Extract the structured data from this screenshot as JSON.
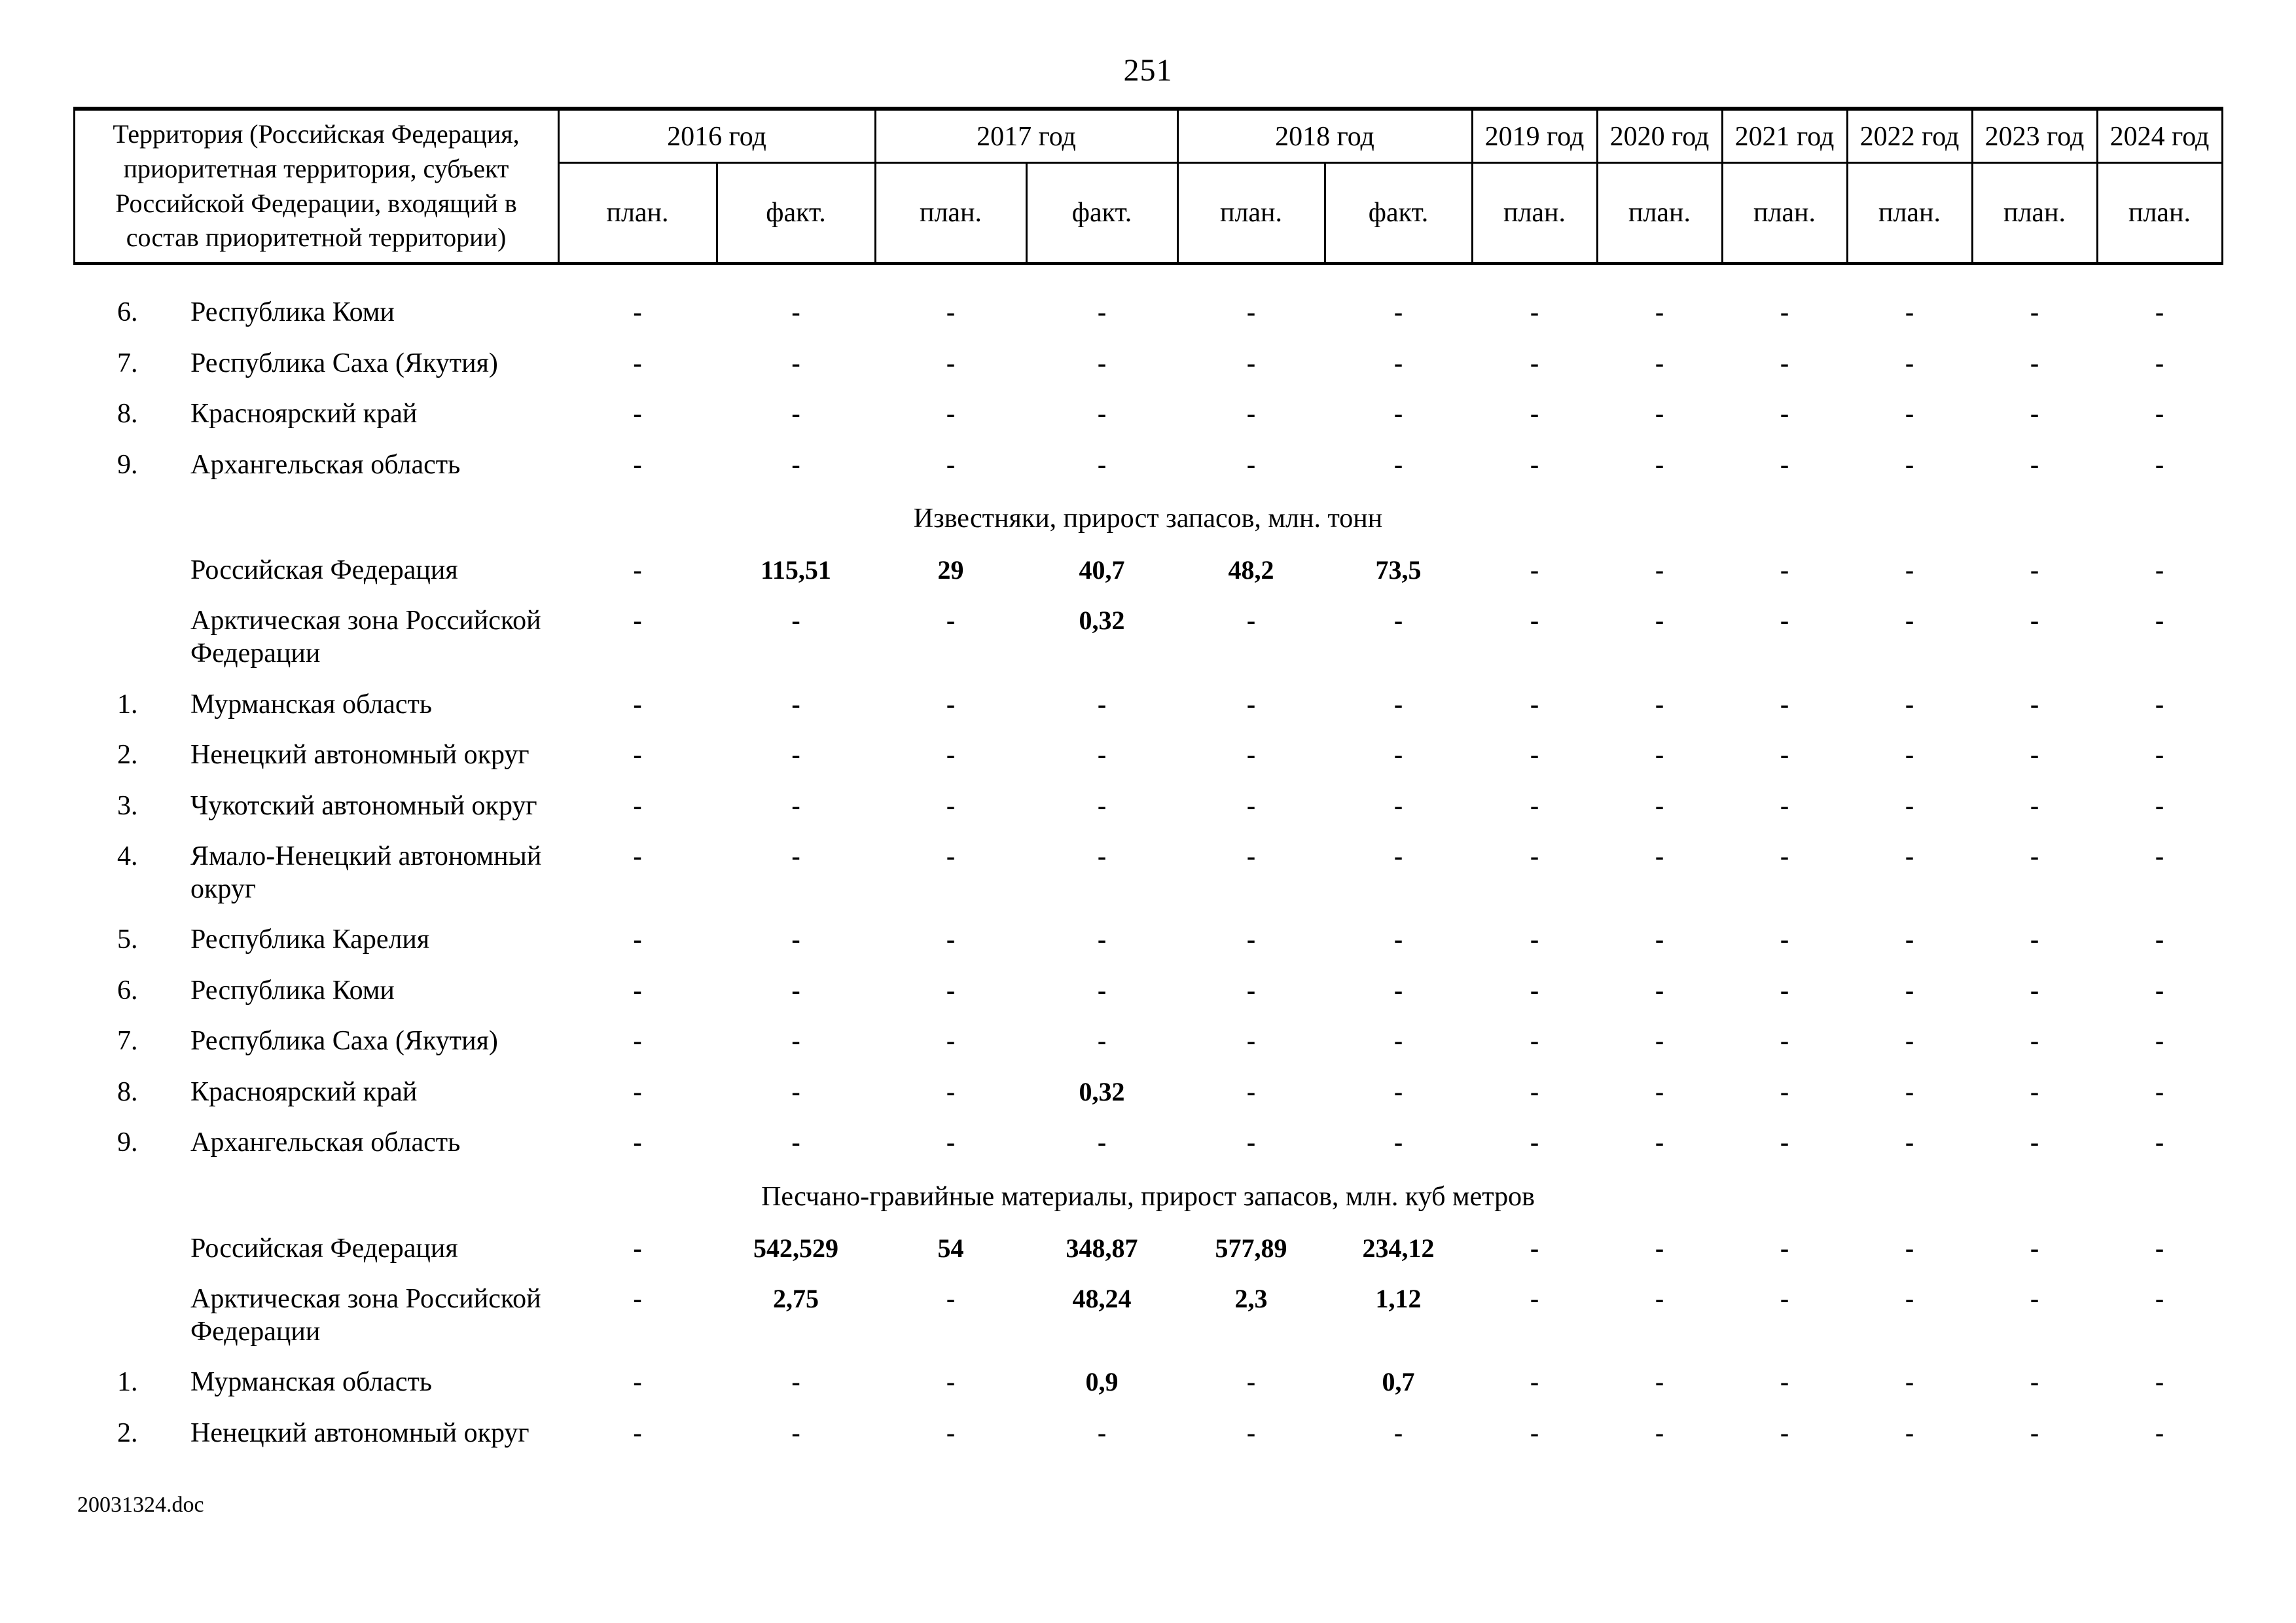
{
  "page": {
    "number": "251",
    "footer": "20031324.doc"
  },
  "table": {
    "header": {
      "territory": "Территория (Российская Федерация, приоритетная территория, субъект Российской Федерации, входящий в состав приоритетной территории)",
      "plan": "план.",
      "fact": "факт.",
      "years": [
        {
          "label": "2016 год",
          "cols": 2
        },
        {
          "label": "2017 год",
          "cols": 2
        },
        {
          "label": "2018 год",
          "cols": 2
        },
        {
          "label": "2019 год",
          "cols": 1
        },
        {
          "label": "2020 год",
          "cols": 1
        },
        {
          "label": "2021 год",
          "cols": 1
        },
        {
          "label": "2022 год",
          "cols": 1
        },
        {
          "label": "2023 год",
          "cols": 1
        },
        {
          "label": "2024 год",
          "cols": 1
        }
      ]
    },
    "rows": [
      {
        "num": "6.",
        "name": "Республика Коми",
        "values": [
          "-",
          "-",
          "-",
          "-",
          "-",
          "-",
          "-",
          "-",
          "-",
          "-",
          "-",
          "-"
        ]
      },
      {
        "num": "7.",
        "name": "Республика Саха (Якутия)",
        "values": [
          "-",
          "-",
          "-",
          "-",
          "-",
          "-",
          "-",
          "-",
          "-",
          "-",
          "-",
          "-"
        ]
      },
      {
        "num": "8.",
        "name": "Красноярский край",
        "values": [
          "-",
          "-",
          "-",
          "-",
          "-",
          "-",
          "-",
          "-",
          "-",
          "-",
          "-",
          "-"
        ]
      },
      {
        "num": "9.",
        "name": "Архангельская область",
        "values": [
          "-",
          "-",
          "-",
          "-",
          "-",
          "-",
          "-",
          "-",
          "-",
          "-",
          "-",
          "-"
        ]
      },
      {
        "section": "Известняки, прирост запасов, млн. тонн"
      },
      {
        "num": "",
        "name": "Российская Федерация",
        "values": [
          "-",
          "115,51",
          "29",
          "40,7",
          "48,2",
          "73,5",
          "-",
          "-",
          "-",
          "-",
          "-",
          "-"
        ]
      },
      {
        "num": "",
        "name": "Арктическая зона Российской Федерации",
        "values": [
          "-",
          "-",
          "-",
          "0,32",
          "-",
          "-",
          "-",
          "-",
          "-",
          "-",
          "-",
          "-"
        ]
      },
      {
        "num": "1.",
        "name": "Мурманская область",
        "values": [
          "-",
          "-",
          "-",
          "-",
          "-",
          "-",
          "-",
          "-",
          "-",
          "-",
          "-",
          "-"
        ]
      },
      {
        "num": "2.",
        "name": "Ненецкий автономный округ",
        "values": [
          "-",
          "-",
          "-",
          "-",
          "-",
          "-",
          "-",
          "-",
          "-",
          "-",
          "-",
          "-"
        ]
      },
      {
        "num": "3.",
        "name": "Чукотский автономный округ",
        "values": [
          "-",
          "-",
          "-",
          "-",
          "-",
          "-",
          "-",
          "-",
          "-",
          "-",
          "-",
          "-"
        ]
      },
      {
        "num": "4.",
        "name": "Ямало-Ненецкий автономный округ",
        "values": [
          "-",
          "-",
          "-",
          "-",
          "-",
          "-",
          "-",
          "-",
          "-",
          "-",
          "-",
          "-"
        ]
      },
      {
        "num": "5.",
        "name": "Республика Карелия",
        "values": [
          "-",
          "-",
          "-",
          "-",
          "-",
          "-",
          "-",
          "-",
          "-",
          "-",
          "-",
          "-"
        ]
      },
      {
        "num": "6.",
        "name": "Республика Коми",
        "values": [
          "-",
          "-",
          "-",
          "-",
          "-",
          "-",
          "-",
          "-",
          "-",
          "-",
          "-",
          "-"
        ]
      },
      {
        "num": "7.",
        "name": "Республика Саха (Якутия)",
        "values": [
          "-",
          "-",
          "-",
          "-",
          "-",
          "-",
          "-",
          "-",
          "-",
          "-",
          "-",
          "-"
        ]
      },
      {
        "num": "8.",
        "name": "Красноярский край",
        "values": [
          "-",
          "-",
          "-",
          "0,32",
          "-",
          "-",
          "-",
          "-",
          "-",
          "-",
          "-",
          "-"
        ]
      },
      {
        "num": "9.",
        "name": "Архангельская область",
        "values": [
          "-",
          "-",
          "-",
          "-",
          "-",
          "-",
          "-",
          "-",
          "-",
          "-",
          "-",
          "-"
        ]
      },
      {
        "section": "Песчано-гравийные материалы, прирост запасов, млн. куб метров"
      },
      {
        "num": "",
        "name": "Российская Федерация",
        "values": [
          "-",
          "542,529",
          "54",
          "348,87",
          "577,89",
          "234,12",
          "-",
          "-",
          "-",
          "-",
          "-",
          "-"
        ]
      },
      {
        "num": "",
        "name": "Арктическая зона Российской Федерации",
        "values": [
          "-",
          "2,75",
          "-",
          "48,24",
          "2,3",
          "1,12",
          "-",
          "-",
          "-",
          "-",
          "-",
          "-"
        ]
      },
      {
        "num": "1.",
        "name": "Мурманская область",
        "values": [
          "-",
          "-",
          "-",
          "0,9",
          "-",
          "0,7",
          "-",
          "-",
          "-",
          "-",
          "-",
          "-"
        ]
      },
      {
        "num": "2.",
        "name": "Ненецкий автономный округ",
        "values": [
          "-",
          "-",
          "-",
          "-",
          "-",
          "-",
          "-",
          "-",
          "-",
          "-",
          "-",
          "-"
        ]
      }
    ]
  }
}
